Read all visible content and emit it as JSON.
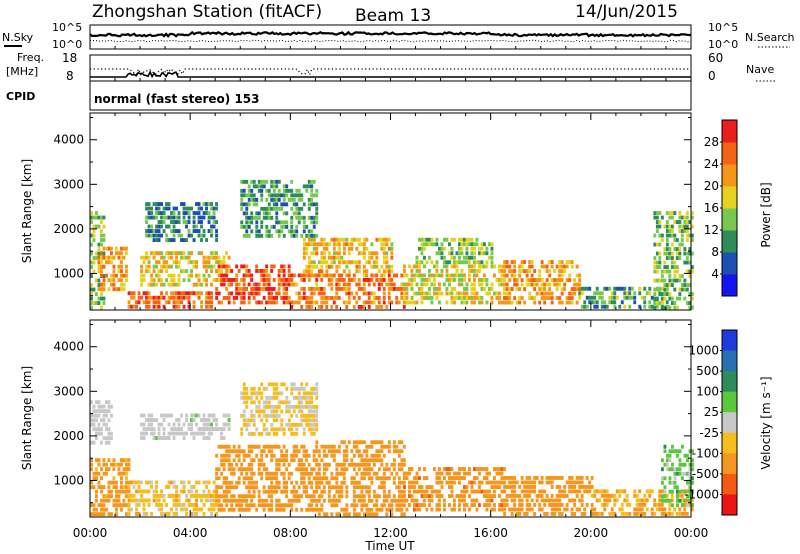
{
  "header": {
    "station": "Zhongshan Station (fitACF)",
    "beam": "Beam 13",
    "date": "14/Jun/2015"
  },
  "strip_panels": {
    "nsky_label": "N.Sky",
    "nsky_ticks": [
      "10^5",
      "10^0"
    ],
    "nsearch_label": "N.Search",
    "nsearch_ticks": [
      "10^5",
      "10^0"
    ],
    "freq_label": "Freq.",
    "freq_unit": "[MHz]",
    "freq_ticks": [
      "18",
      "8"
    ],
    "nave_label": "Nave",
    "nave_ticks": [
      "60",
      "0"
    ],
    "cpid_label": "CPID",
    "cpid_value": "normal (fast stereo) 153"
  },
  "chart_data": [
    {
      "type": "heatmap",
      "panel": "power",
      "xlabel": "Time UT",
      "ylabel": "Slant Range [km]",
      "x_ticks": [
        "00:00",
        "04:00",
        "08:00",
        "12:00",
        "16:00",
        "20:00",
        "00:00"
      ],
      "x_range_hours": [
        0,
        24
      ],
      "y_ticks": [
        1000,
        2000,
        3000,
        4000
      ],
      "ylim": [
        180,
        4600
      ],
      "colorbar_label": "Power [dB]",
      "colorbar_ticks": [
        4,
        8,
        12,
        16,
        20,
        24,
        28
      ],
      "colorbar_range": [
        0,
        32
      ],
      "colors": [
        "#1414f0",
        "#1e50b4",
        "#2d8c5a",
        "#78c850",
        "#e6d21e",
        "#f59619",
        "#f56414",
        "#eb1e1e"
      ],
      "regions": [
        {
          "t": [
            0,
            0.5
          ],
          "r": [
            200,
            2400
          ],
          "v": 14
        },
        {
          "t": [
            0.3,
            1.4
          ],
          "r": [
            600,
            1600
          ],
          "v": 22
        },
        {
          "t": [
            1.5,
            4.8
          ],
          "r": [
            200,
            600
          ],
          "v": 25
        },
        {
          "t": [
            2.0,
            5.5
          ],
          "r": [
            700,
            1500
          ],
          "v": 18
        },
        {
          "t": [
            2.2,
            5.0
          ],
          "r": [
            1700,
            2600
          ],
          "v": 9
        },
        {
          "t": [
            5.0,
            8.0
          ],
          "r": [
            300,
            1200
          ],
          "v": 27
        },
        {
          "t": [
            6.0,
            9.0
          ],
          "r": [
            1800,
            3100
          ],
          "v": 11
        },
        {
          "t": [
            8.0,
            12.5
          ],
          "r": [
            200,
            1000
          ],
          "v": 24
        },
        {
          "t": [
            8.5,
            12.0
          ],
          "r": [
            1000,
            1800
          ],
          "v": 20
        },
        {
          "t": [
            12.5,
            16.5
          ],
          "r": [
            300,
            1200
          ],
          "v": 18
        },
        {
          "t": [
            13.0,
            16.0
          ],
          "r": [
            1200,
            1800
          ],
          "v": 14
        },
        {
          "t": [
            16.5,
            19.5
          ],
          "r": [
            300,
            1300
          ],
          "v": 22
        },
        {
          "t": [
            19.5,
            23.0
          ],
          "r": [
            200,
            700
          ],
          "v": 12
        },
        {
          "t": [
            22.5,
            24.0
          ],
          "r": [
            200,
            2400
          ],
          "v": 13
        }
      ]
    },
    {
      "type": "heatmap",
      "panel": "velocity",
      "xlabel": "Time UT",
      "ylabel": "Slant Range [km]",
      "x_ticks": [
        "00:00",
        "04:00",
        "08:00",
        "12:00",
        "16:00",
        "20:00",
        "00:00"
      ],
      "x_range_hours": [
        0,
        24
      ],
      "y_ticks": [
        1000,
        2000,
        3000,
        4000
      ],
      "ylim": [
        180,
        4600
      ],
      "colorbar_label": "Velocity [m s⁻¹]",
      "colorbar_ticks": [
        "1000",
        "500",
        "100",
        "25",
        "-25",
        "-100",
        "-500",
        "-1000"
      ],
      "colors": [
        "#1e3cdc",
        "#2870b4",
        "#2d8c5a",
        "#5ac83c",
        "#c8c8c8",
        "#f5be1e",
        "#f5961e",
        "#f55a14",
        "#eb1414"
      ],
      "regions": [
        {
          "t": [
            0,
            0.8
          ],
          "r": [
            1800,
            2800
          ],
          "v": 0
        },
        {
          "t": [
            0,
            1.5
          ],
          "r": [
            200,
            1500
          ],
          "v": -180
        },
        {
          "t": [
            1.5,
            5.0
          ],
          "r": [
            200,
            1000
          ],
          "v": -60
        },
        {
          "t": [
            2.0,
            5.5
          ],
          "r": [
            1900,
            2500
          ],
          "v": 5
        },
        {
          "t": [
            5.0,
            9.0
          ],
          "r": [
            300,
            1800
          ],
          "v": -250
        },
        {
          "t": [
            6.0,
            9.0
          ],
          "r": [
            2000,
            3200
          ],
          "v": -40
        },
        {
          "t": [
            9.0,
            12.5
          ],
          "r": [
            200,
            1900
          ],
          "v": -220
        },
        {
          "t": [
            12.5,
            16.5
          ],
          "r": [
            300,
            1300
          ],
          "v": -350
        },
        {
          "t": [
            16.5,
            20.0
          ],
          "r": [
            200,
            1100
          ],
          "v": -260
        },
        {
          "t": [
            20.0,
            24.0
          ],
          "r": [
            200,
            800
          ],
          "v": -120
        },
        {
          "t": [
            22.8,
            24.0
          ],
          "r": [
            400,
            1800
          ],
          "v": 60
        }
      ]
    }
  ]
}
